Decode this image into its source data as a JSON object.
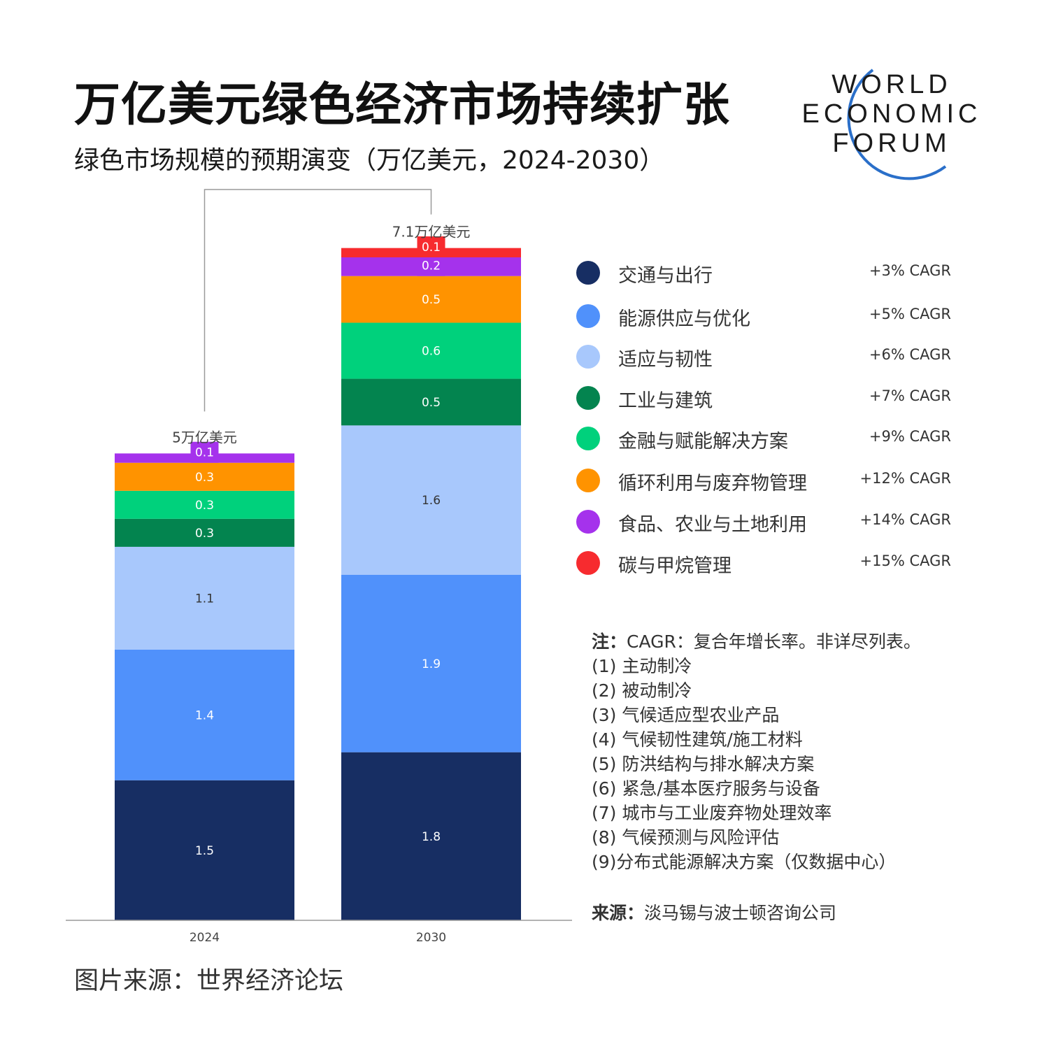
{
  "header": {
    "title": "万亿美元绿色经济市场持续扩张",
    "subtitle": "绿色市场规模的预期演变（万亿美元，2024-2030）"
  },
  "logo": {
    "line1": "WORLD",
    "line2": "ECONOMIC",
    "line3": "FORUM",
    "arc_color": "#2a6fc9"
  },
  "chart_data": {
    "type": "bar",
    "stacked": true,
    "categories": [
      "2024",
      "2030"
    ],
    "totals_labels": [
      "5万亿美元",
      "7.1万亿美元"
    ],
    "series": [
      {
        "name": "交通与出行",
        "values": [
          1.5,
          1.8
        ],
        "color": "#172e63",
        "label_color": "#ffffff"
      },
      {
        "name": "能源供应与优化",
        "values": [
          1.4,
          1.9
        ],
        "color": "#5091fb",
        "label_color": "#ffffff"
      },
      {
        "name": "适应与韧性",
        "values": [
          1.1,
          1.6
        ],
        "color": "#a8c8fc",
        "label_color": "#333333"
      },
      {
        "name": "工业与建筑",
        "values": [
          0.3,
          0.5
        ],
        "color": "#03844f",
        "label_color": "#ffffff"
      },
      {
        "name": "金融与赋能解决方案",
        "values": [
          0.3,
          0.6
        ],
        "color": "#00d17c",
        "label_color": "#ffffff"
      },
      {
        "name": "循环利用与废弃物管理",
        "values": [
          0.3,
          0.5
        ],
        "color": "#ff9300",
        "label_color": "#ffffff"
      },
      {
        "name": "食品、农业与土地利用",
        "values": [
          0.1,
          0.2
        ],
        "color": "#a532ec",
        "label_color": "#ffffff"
      },
      {
        "name": "碳与甲烷管理",
        "values": [
          0.0,
          0.1
        ],
        "color": "#f72b2f",
        "label_color": "#ffffff"
      }
    ],
    "value_labels": [
      [
        "1.5",
        "1.4",
        "1.1",
        "0.3",
        "0.3",
        "0.3",
        "0.1",
        ""
      ],
      [
        "1.8",
        "1.9",
        "1.6",
        "0.5",
        "0.6",
        "0.5",
        "0.2",
        "0.1"
      ]
    ],
    "ylim": [
      0,
      7.1
    ],
    "legend_position": "right",
    "grid": false
  },
  "legend": {
    "items": [
      {
        "label": "交通与出行",
        "cagr": "+3%  CAGR",
        "color": "#172e63"
      },
      {
        "label": "能源供应与优化",
        "cagr": "+5%  CAGR",
        "color": "#5091fb"
      },
      {
        "label": "适应与韧性",
        "cagr": "+6%  CAGR",
        "color": "#a8c8fc"
      },
      {
        "label": "工业与建筑",
        "cagr": "+7%  CAGR",
        "color": "#03844f"
      },
      {
        "label": "金融与赋能解决方案",
        "cagr": "+9%  CAGR",
        "color": "#00d17c"
      },
      {
        "label": "循环利用与废弃物管理",
        "cagr": "+12%  CAGR",
        "color": "#ff9300"
      },
      {
        "label": "食品、农业与土地利用",
        "cagr": "+14%  CAGR",
        "color": "#a532ec"
      },
      {
        "label": "碳与甲烷管理",
        "cagr": "+15%  CAGR",
        "color": "#f72b2f"
      }
    ]
  },
  "notes": {
    "head": "注：",
    "head_text": "CAGR：复合年增长率。非详尽列表。",
    "lines": [
      "(1) 主动制冷",
      "(2)  被动制冷",
      "(3) 气候适应型农业产品",
      "(4) 气候韧性建筑/施工材料",
      " (5) 防洪结构与排水解决方案",
      "(6) 紧急/基本医疗服务与设备",
      "(7) 城市与工业废弃物处理效率",
      " (8) 气候预测与风险评估",
      "(9)分布式能源解决方案（仅数据中心）"
    ]
  },
  "source": {
    "head": "来源：",
    "text": "淡马锡与波士顿咨询公司"
  },
  "footer": {
    "text": "图片来源：世界经济论坛"
  }
}
